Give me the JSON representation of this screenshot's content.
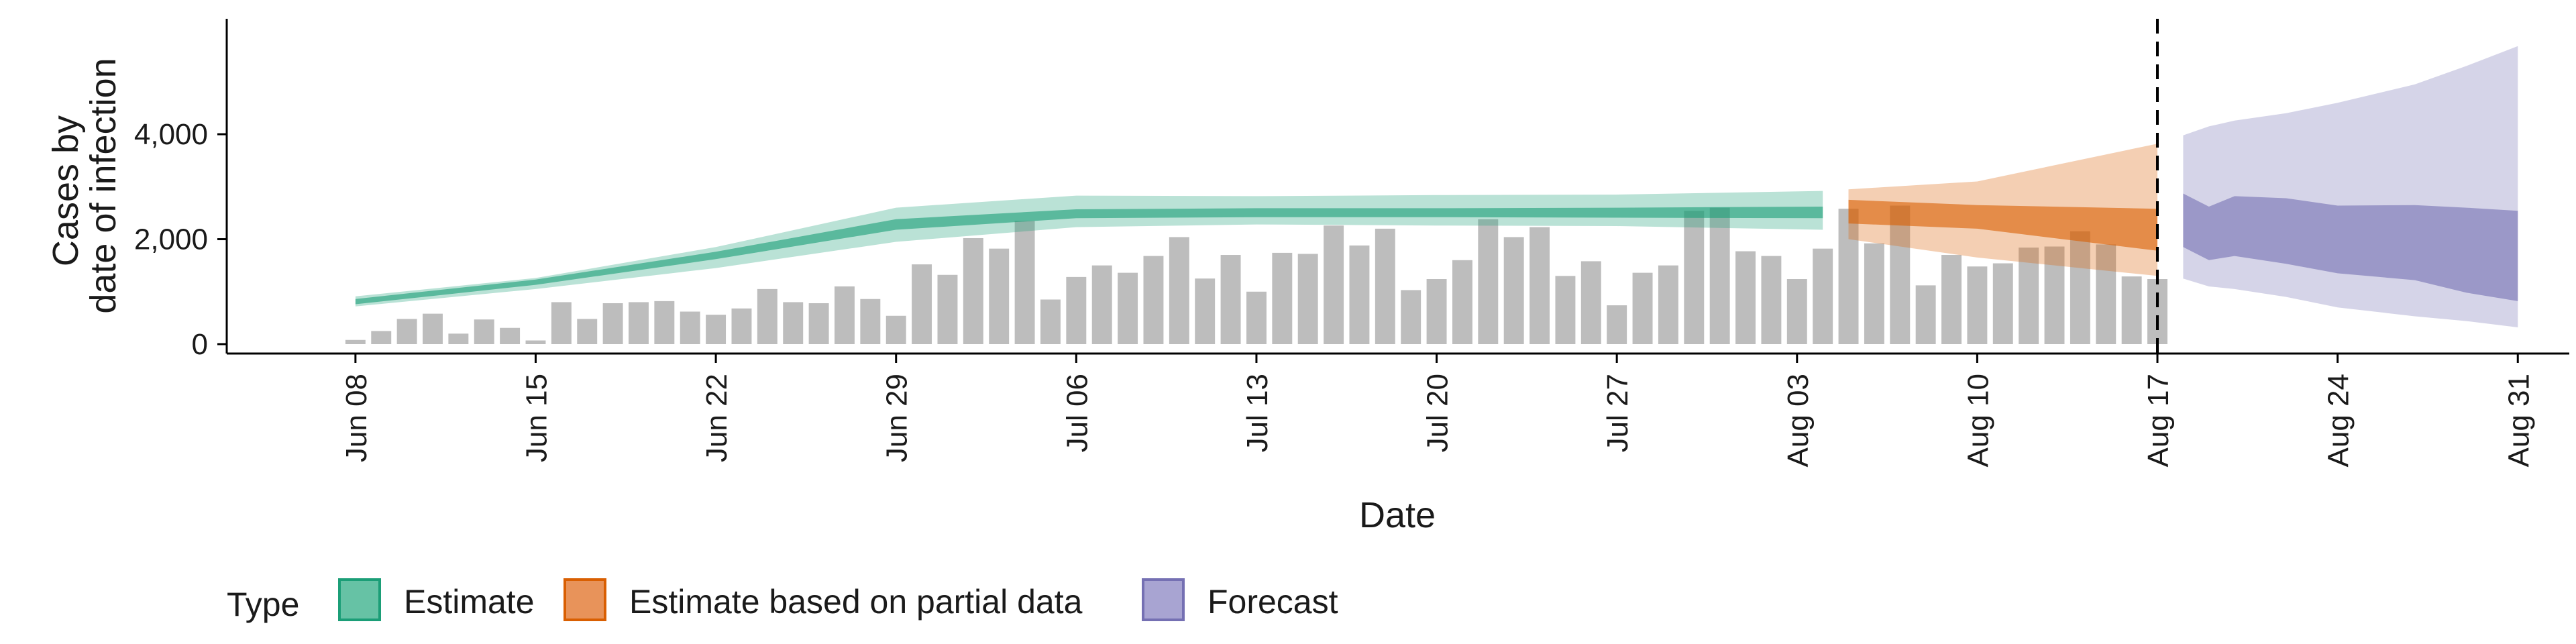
{
  "chart_data": {
    "type": "area",
    "xlabel": "Date",
    "ylabel": [
      "Cases by",
      "date of infection"
    ],
    "ylim": [
      0,
      6200
    ],
    "yticks": [
      0,
      2000,
      4000
    ],
    "ytick_labels": [
      "0",
      "2,000",
      "4,000"
    ],
    "xlim": [
      "2020-06-03",
      "2020-09-02"
    ],
    "xticks": [
      "2020-06-08",
      "2020-06-15",
      "2020-06-22",
      "2020-06-29",
      "2020-07-06",
      "2020-07-13",
      "2020-07-20",
      "2020-07-27",
      "2020-08-03",
      "2020-08-10",
      "2020-08-17",
      "2020-08-24",
      "2020-08-31"
    ],
    "xtick_labels": [
      "Jun 08",
      "Jun 15",
      "Jun 22",
      "Jun 29",
      "Jul 06",
      "Jul 13",
      "Jul 20",
      "Jul 27",
      "Aug 03",
      "Aug 10",
      "Aug 17",
      "Aug 24",
      "Aug 31"
    ],
    "vline": "2020-08-17",
    "grid": false,
    "legend_position": "bottom",
    "legend": {
      "title": "Type",
      "items": [
        {
          "label": "Estimate",
          "fill": "#66c2a5",
          "stroke": "#1b9e77"
        },
        {
          "label": "Estimate based on partial data",
          "fill": "#e8935a",
          "stroke": "#d95f02"
        },
        {
          "label": "Forecast",
          "fill": "#a8a4d2",
          "stroke": "#7570b3"
        }
      ]
    },
    "colors": {
      "bars": "#bdbdbd",
      "estimate": "#1b9e77",
      "partial": "#d95f02",
      "forecast": "#7570b3",
      "vline": "#000000"
    },
    "bars": {
      "x_start": "2020-06-08",
      "values": [
        80,
        250,
        480,
        580,
        200,
        470,
        310,
        70,
        800,
        480,
        780,
        800,
        820,
        620,
        560,
        680,
        1050,
        800,
        780,
        1100,
        860,
        540,
        1520,
        1320,
        2020,
        1820,
        2350,
        850,
        1280,
        1500,
        1360,
        1680,
        2040,
        1250,
        1700,
        1000,
        1740,
        1720,
        2260,
        1880,
        2200,
        1030,
        1240,
        1600,
        2380,
        2040,
        2230,
        1300,
        1580,
        740,
        1360,
        1500,
        2540,
        2600,
        1770,
        1680,
        1240,
        1820,
        2580,
        1920,
        2640,
        1120,
        1700,
        1480,
        1540,
        1840,
        1860,
        2150,
        1900,
        1290,
        1240
      ]
    },
    "series": [
      {
        "name": "Estimate",
        "x": [
          "2020-06-08",
          "2020-06-15",
          "2020-06-22",
          "2020-06-29",
          "2020-07-06",
          "2020-07-13",
          "2020-07-20",
          "2020-07-27",
          "2020-08-04"
        ],
        "outer_lower": [
          720,
          1050,
          1450,
          1950,
          2230,
          2280,
          2260,
          2250,
          2180
        ],
        "outer_upper": [
          910,
          1260,
          1850,
          2600,
          2830,
          2820,
          2840,
          2850,
          2920
        ],
        "inner_lower": [
          760,
          1130,
          1620,
          2180,
          2400,
          2420,
          2420,
          2410,
          2400
        ],
        "inner_upper": [
          860,
          1230,
          1760,
          2380,
          2570,
          2590,
          2590,
          2600,
          2620
        ]
      },
      {
        "name": "Estimate based on partial data",
        "x": [
          "2020-08-05",
          "2020-08-10",
          "2020-08-17"
        ],
        "outer_lower": [
          2000,
          1650,
          1300
        ],
        "outer_upper": [
          2950,
          3100,
          3820
        ],
        "inner_lower": [
          2300,
          2200,
          1780
        ],
        "inner_upper": [
          2750,
          2650,
          2580
        ]
      },
      {
        "name": "Forecast",
        "x": [
          "2020-08-18",
          "2020-08-19",
          "2020-08-20",
          "2020-08-22",
          "2020-08-24",
          "2020-08-27",
          "2020-08-29",
          "2020-08-31"
        ],
        "outer_lower": [
          1250,
          1100,
          1050,
          900,
          700,
          530,
          440,
          320
        ],
        "outer_upper": [
          3980,
          4150,
          4260,
          4400,
          4600,
          4950,
          5300,
          5680
        ],
        "inner_lower": [
          1850,
          1600,
          1680,
          1530,
          1350,
          1220,
          980,
          820
        ],
        "inner_upper": [
          2870,
          2620,
          2820,
          2780,
          2640,
          2650,
          2600,
          2540
        ]
      }
    ]
  }
}
